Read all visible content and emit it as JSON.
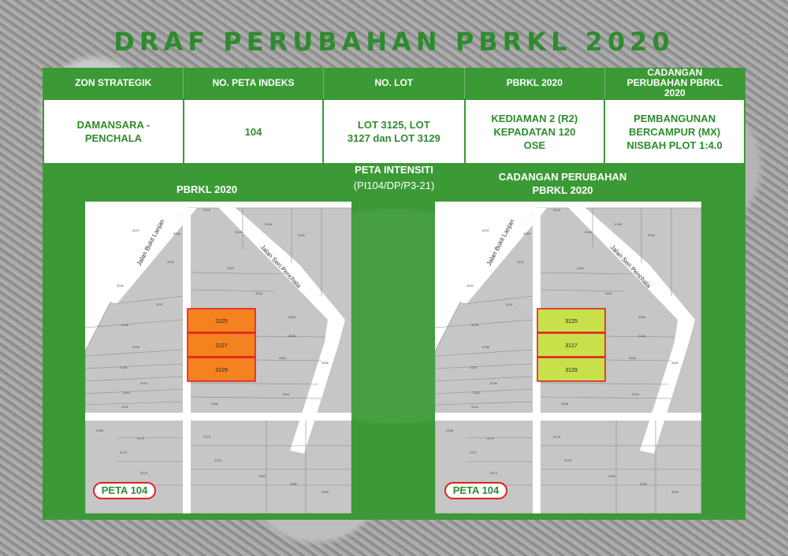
{
  "title": "DRAF PERUBAHAN PBRKL 2020",
  "table": {
    "headers": [
      "ZON STRATEGIK",
      "NO. PETA INDEKS",
      "NO. LOT",
      "PBRKL 2020",
      "CADANGAN PERUBAHAN PBRKL 2020"
    ],
    "row": [
      "DAMANSARA - PENCHALA",
      "104",
      "LOT 3125, LOT 3127 dan LOT 3129",
      "KEDIAMAN 2 (R2) KEPADATAN 120 OSE",
      "PEMBANGUNAN BERCAMPUR (MX) NISBAH PLOT 1:4.0"
    ]
  },
  "center": {
    "title": "PETA INTENSITI",
    "subtitle": "(PI104/DP/P3-21)"
  },
  "maps": {
    "left": {
      "title": "PBRKL 2020",
      "badge": "PETA 104",
      "highlight_color": "#f4821f"
    },
    "right": {
      "title": "CADANGAN PERUBAHAN PBRKL 2020",
      "badge": "PETA 104",
      "highlight_color": "#c8e04a"
    }
  },
  "roads": {
    "left": "Jalan Bukit Lanjan",
    "right": "Jalan Seri Penchala"
  },
  "lots": {
    "highlighted": [
      "3125",
      "3127",
      "3129"
    ],
    "others": [
      "3137",
      "3118",
      "3131",
      "3116",
      "3121",
      "3135",
      "3138",
      "3133",
      "3140",
      "3142",
      "3141",
      "3144",
      "3146",
      "3148",
      "3150",
      "3152",
      "3154",
      "3156",
      "3158",
      "3160",
      "3162",
      "3164",
      "3166",
      "3168",
      "3170",
      "3172",
      "3174",
      "3176",
      "3178",
      "3180",
      "3182",
      "3184"
    ]
  },
  "colors": {
    "green": "#3b9a35",
    "title_green": "#2e8b2e",
    "outline_red": "#e02020"
  }
}
